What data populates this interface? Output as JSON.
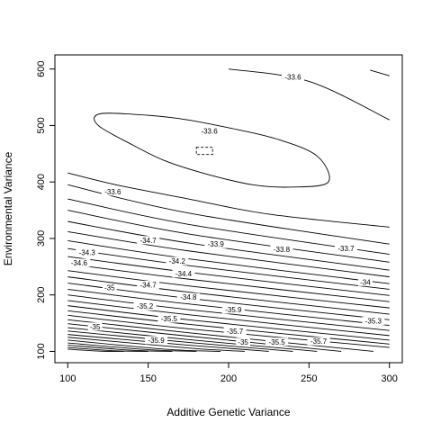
{
  "chart_data": {
    "type": "contour",
    "title": "",
    "xlabel": "Additive Genetic Variance",
    "ylabel": "Environmental Variance",
    "xlim": [
      92,
      308
    ],
    "ylim": [
      80,
      625
    ],
    "x_ticks": [
      "100",
      "150",
      "200",
      "250",
      "300"
    ],
    "y_ticks": [
      "100",
      "200",
      "300",
      "400",
      "500",
      "600"
    ],
    "grid": false,
    "maximum": {
      "x": 185,
      "y": 455,
      "marker": "dashed-box"
    },
    "contours": [
      {
        "level": "-33.6",
        "points": [
          [
            200,
            600
          ],
          [
            250,
            578
          ],
          [
            300,
            510
          ]
        ]
      },
      {
        "level": "-33.6",
        "points": [
          [
            288,
            598
          ],
          [
            300,
            588
          ]
        ]
      },
      {
        "level": "-33.6",
        "closed": true,
        "points": [
          [
            119,
            520
          ],
          [
            140,
            520
          ],
          [
            170,
            512
          ],
          [
            200,
            496
          ],
          [
            230,
            476
          ],
          [
            255,
            446
          ],
          [
            262,
            400
          ],
          [
            240,
            391
          ],
          [
            215,
            395
          ],
          [
            185,
            415
          ],
          [
            160,
            438
          ],
          [
            140,
            466
          ],
          [
            119,
            500
          ]
        ]
      },
      {
        "level": "-33.6",
        "points": [
          [
            100,
            416
          ],
          [
            130,
            395
          ],
          [
            175,
            370
          ],
          [
            225,
            343
          ],
          [
            300,
            320
          ]
        ]
      },
      {
        "level": "",
        "points": [
          [
            100,
            395
          ],
          [
            175,
            345
          ],
          [
            300,
            290
          ]
        ]
      },
      {
        "level": "",
        "points": [
          [
            100,
            370
          ],
          [
            175,
            325
          ],
          [
            300,
            272
          ]
        ]
      },
      {
        "level": "-33.7",
        "points": [
          [
            100,
            350
          ],
          [
            175,
            308
          ],
          [
            300,
            258
          ]
        ]
      },
      {
        "level": "-33.8",
        "points": [
          [
            100,
            330
          ],
          [
            175,
            292
          ],
          [
            300,
            244
          ]
        ]
      },
      {
        "level": "-33.9",
        "points": [
          [
            100,
            312
          ],
          [
            175,
            278
          ],
          [
            300,
            232
          ]
        ]
      },
      {
        "level": "",
        "points": [
          [
            100,
            296
          ],
          [
            175,
            264
          ],
          [
            300,
            220
          ]
        ]
      },
      {
        "level": "-34",
        "points": [
          [
            100,
            282
          ],
          [
            175,
            252
          ],
          [
            300,
            210
          ]
        ]
      },
      {
        "level": "",
        "points": [
          [
            100,
            268
          ],
          [
            175,
            240
          ],
          [
            300,
            199
          ]
        ]
      },
      {
        "level": "-34.2",
        "points": [
          [
            100,
            255
          ],
          [
            175,
            228
          ],
          [
            300,
            188
          ]
        ]
      },
      {
        "level": "-34.3",
        "points": [
          [
            100,
            243
          ],
          [
            175,
            216
          ],
          [
            300,
            177
          ]
        ]
      },
      {
        "level": "-34.4",
        "points": [
          [
            100,
            232
          ],
          [
            175,
            205
          ],
          [
            300,
            166
          ]
        ]
      },
      {
        "level": "",
        "points": [
          [
            100,
            221
          ],
          [
            175,
            194
          ],
          [
            300,
            156
          ]
        ]
      },
      {
        "level": "-34.7",
        "points": [
          [
            100,
            210
          ],
          [
            175,
            184
          ],
          [
            300,
            146
          ]
        ]
      },
      {
        "level": "-34.8",
        "points": [
          [
            100,
            200
          ],
          [
            175,
            174
          ],
          [
            300,
            137
          ]
        ]
      },
      {
        "level": "",
        "points": [
          [
            100,
            190
          ],
          [
            175,
            165
          ],
          [
            300,
            128
          ]
        ]
      },
      {
        "level": "",
        "points": [
          [
            100,
            181
          ],
          [
            175,
            156
          ],
          [
            300,
            120
          ]
        ]
      },
      {
        "level": "-35",
        "points": [
          [
            100,
            172
          ],
          [
            175,
            148
          ],
          [
            300,
            113
          ]
        ]
      },
      {
        "level": "",
        "points": [
          [
            100,
            164
          ],
          [
            175,
            140
          ],
          [
            300,
            107
          ]
        ]
      },
      {
        "level": "-35.3",
        "points": [
          [
            100,
            156
          ],
          [
            175,
            133
          ],
          [
            290,
            100
          ]
        ]
      },
      {
        "level": "",
        "points": [
          [
            100,
            149
          ],
          [
            175,
            127
          ],
          [
            270,
            100
          ]
        ]
      },
      {
        "level": "-35.5",
        "points": [
          [
            100,
            142
          ],
          [
            175,
            121
          ],
          [
            255,
            100
          ]
        ]
      },
      {
        "level": "",
        "points": [
          [
            100,
            136
          ],
          [
            175,
            116
          ],
          [
            240,
            100
          ]
        ]
      },
      {
        "level": "-35.7",
        "points": [
          [
            100,
            130
          ],
          [
            175,
            111
          ],
          [
            225,
            100
          ]
        ]
      },
      {
        "level": "",
        "points": [
          [
            100,
            125
          ],
          [
            175,
            106
          ],
          [
            210,
            100
          ]
        ]
      },
      {
        "level": "-35.9",
        "points": [
          [
            100,
            120
          ],
          [
            160,
            104
          ],
          [
            195,
            100
          ]
        ]
      },
      {
        "level": "",
        "points": [
          [
            100,
            115
          ],
          [
            150,
            103
          ],
          [
            180,
            100
          ]
        ]
      },
      {
        "level": "",
        "points": [
          [
            100,
            111
          ],
          [
            140,
            102
          ],
          [
            165,
            100
          ]
        ]
      },
      {
        "level": "",
        "points": [
          [
            100,
            107
          ],
          [
            130,
            101
          ],
          [
            150,
            100
          ]
        ]
      },
      {
        "level": "",
        "points": [
          [
            100,
            104
          ],
          [
            120,
            100.5
          ],
          [
            135,
            100
          ]
        ]
      }
    ],
    "contour_labels": [
      {
        "text": "-33.6",
        "x": 240,
        "y": 586
      },
      {
        "text": "-33.6",
        "x": 188,
        "y": 490
      },
      {
        "text": "-33.6",
        "x": 128,
        "y": 383
      },
      {
        "text": "-34.7",
        "x": 150,
        "y": 297
      },
      {
        "text": "-33.9",
        "x": 192,
        "y": 290
      },
      {
        "text": "-33.8",
        "x": 233,
        "y": 281
      },
      {
        "text": "-33.7",
        "x": 273,
        "y": 282
      },
      {
        "text": "-34.3",
        "x": 112,
        "y": 275
      },
      {
        "text": "-34.2",
        "x": 168,
        "y": 260
      },
      {
        "text": "-34.6",
        "x": 107,
        "y": 257
      },
      {
        "text": "-34.4",
        "x": 172,
        "y": 238
      },
      {
        "text": "-34",
        "x": 285,
        "y": 223
      },
      {
        "text": "-34.7",
        "x": 150,
        "y": 218
      },
      {
        "text": "-34.8",
        "x": 175,
        "y": 196
      },
      {
        "text": "-35",
        "x": 126,
        "y": 213
      },
      {
        "text": "-35.2",
        "x": 148,
        "y": 180
      },
      {
        "text": "-35.5",
        "x": 163,
        "y": 158
      },
      {
        "text": "-35.9",
        "x": 203,
        "y": 174
      },
      {
        "text": "-35.3",
        "x": 290,
        "y": 154
      },
      {
        "text": "-35.7",
        "x": 204,
        "y": 136
      },
      {
        "text": "-35",
        "x": 117,
        "y": 144
      },
      {
        "text": "-35.7",
        "x": 256,
        "y": 118
      },
      {
        "text": "-35",
        "x": 209,
        "y": 117
      },
      {
        "text": "-35.5",
        "x": 230,
        "y": 117
      },
      {
        "text": "-35.9",
        "x": 155,
        "y": 120
      }
    ]
  }
}
